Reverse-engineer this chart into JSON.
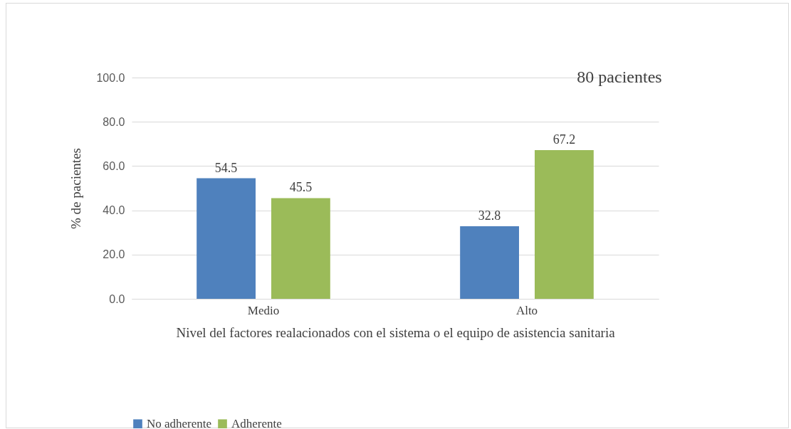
{
  "chart_data": {
    "type": "bar",
    "xlabel": "Nivel del factores realacionados con el sistema o el equipo de asistencia sanitaria",
    "ylabel": "% de pacientes",
    "annotations": [
      "80 pacientes"
    ],
    "categories": [
      "Medio",
      "Alto"
    ],
    "series": [
      {
        "name": "No adherente",
        "color": "#4f81bd",
        "values": [
          54.5,
          32.8
        ]
      },
      {
        "name": "Adherente",
        "color": "#9bbb59",
        "values": [
          45.5,
          67.2
        ]
      }
    ],
    "ylim": [
      0,
      100
    ],
    "yticks": [
      {
        "value": 0,
        "label": "0.0"
      },
      {
        "value": 20,
        "label": "20.0"
      },
      {
        "value": 40,
        "label": "40.0"
      },
      {
        "value": 60,
        "label": "60.0"
      },
      {
        "value": 80,
        "label": "80.0"
      },
      {
        "value": 100,
        "label": "100.0"
      }
    ],
    "grid": "y",
    "legend": "bottom",
    "data_labels": true
  }
}
